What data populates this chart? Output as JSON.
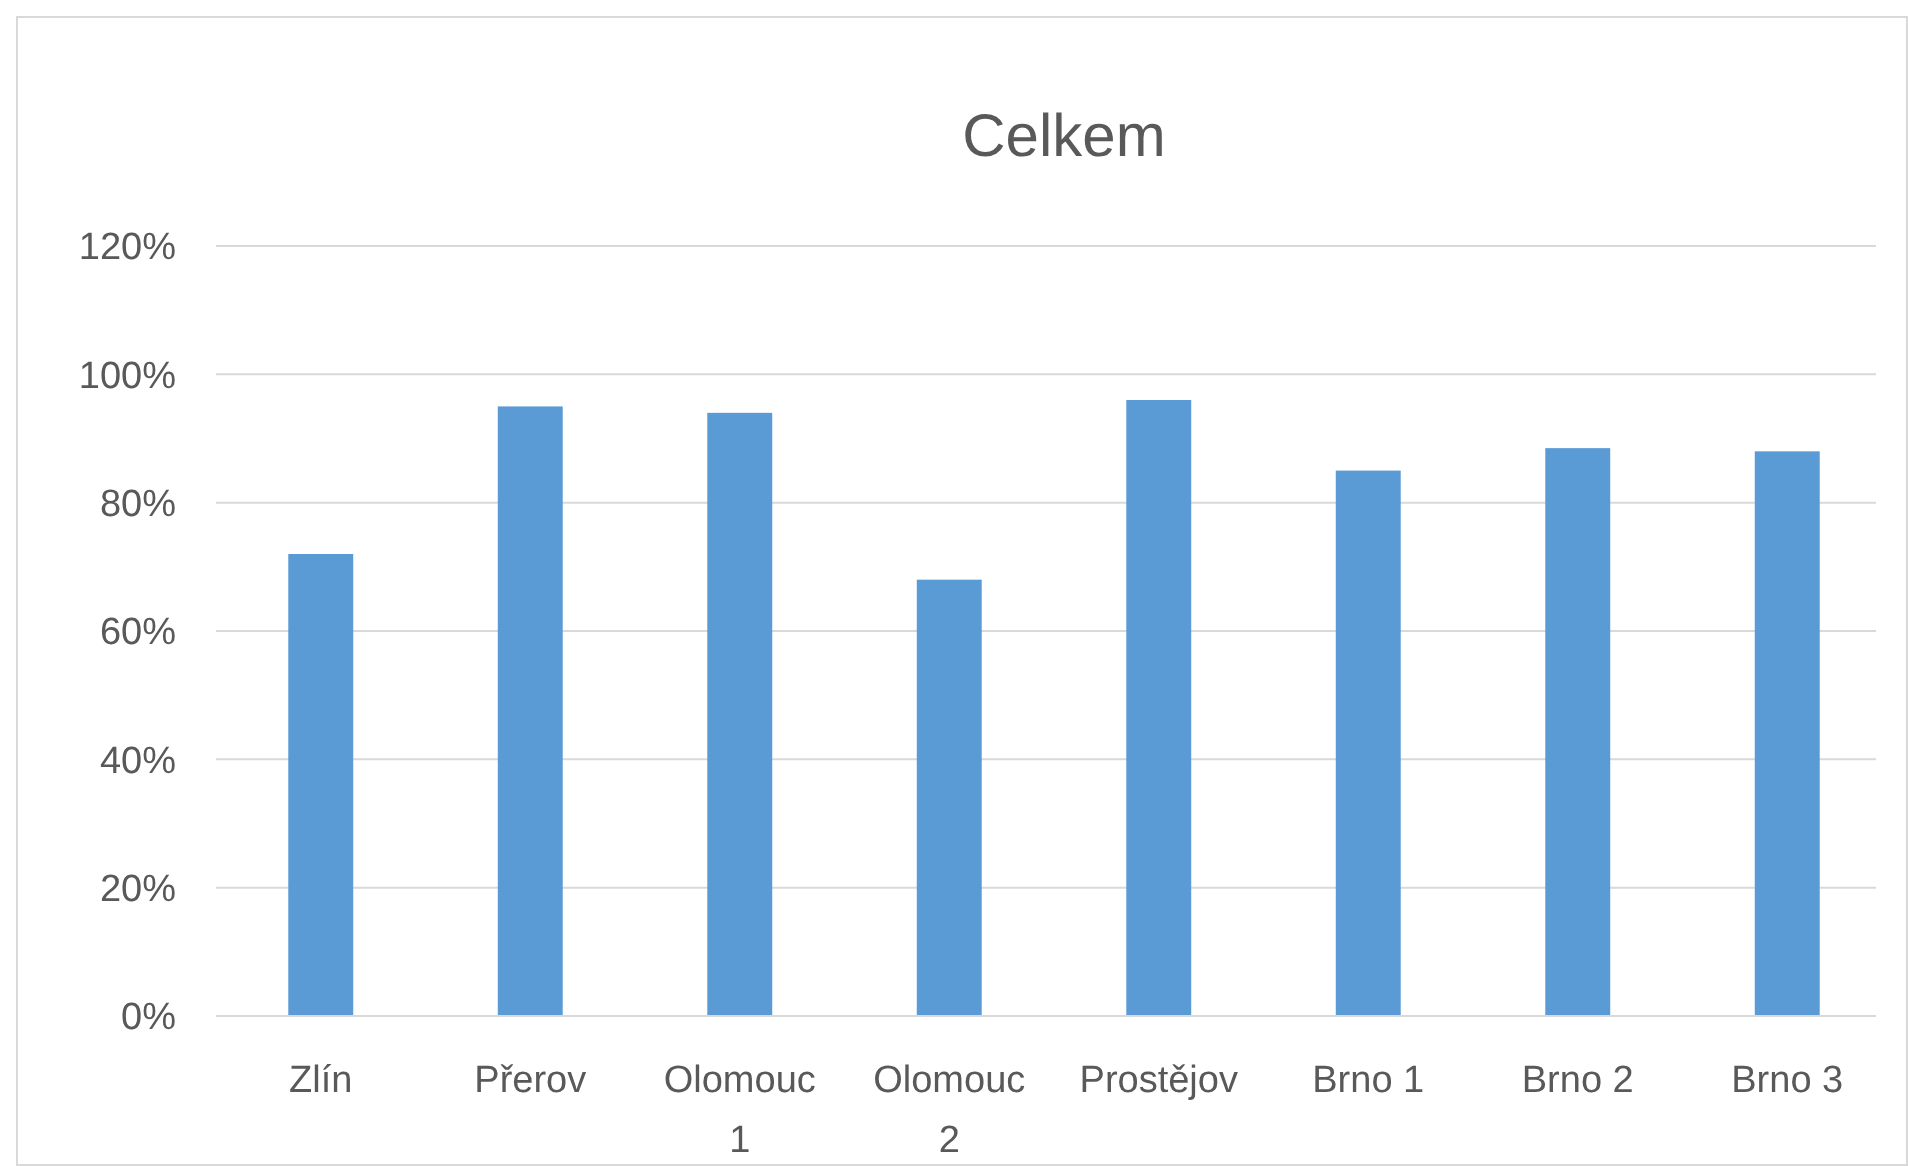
{
  "chart_data": {
    "type": "bar",
    "title": "Celkem",
    "categories": [
      "Zlín",
      "Přerov",
      "Olomouc 1",
      "Olomouc 2",
      "Prostějov",
      "Brno 1",
      "Brno 2",
      "Brno 3"
    ],
    "values": [
      72,
      95,
      94,
      68,
      96,
      85,
      88.5,
      88
    ],
    "color": "#5b9bd5",
    "ylim": [
      0,
      120
    ],
    "yticks": [
      {
        "value": 0,
        "label": "0%"
      },
      {
        "value": 20,
        "label": "20%"
      },
      {
        "value": 40,
        "label": "40%"
      },
      {
        "value": 60,
        "label": "60%"
      },
      {
        "value": 80,
        "label": "80%"
      },
      {
        "value": 100,
        "label": "100%"
      },
      {
        "value": 120,
        "label": "120%"
      }
    ],
    "grid": "y"
  }
}
